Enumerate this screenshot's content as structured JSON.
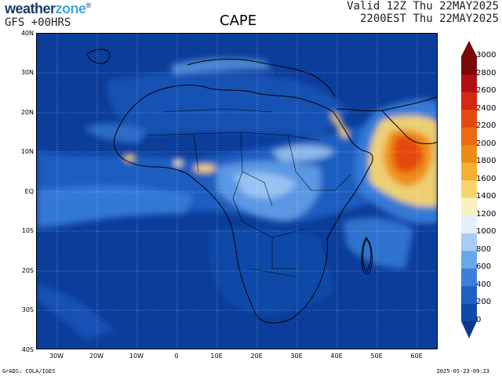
{
  "header": {
    "logo_part1": "weather",
    "logo_part2": "zone",
    "logo_mark": "®",
    "model_line": "GFS  +00HRS",
    "title": "CAPE",
    "valid_line1": "Valid 12Z Thu 22MAY2025",
    "valid_line2": "2200EST Thu 22MAY2025"
  },
  "map": {
    "latitudes": [
      "40N",
      "30N",
      "20N",
      "10N",
      "EQ",
      "10S",
      "20S",
      "30S",
      "40S"
    ],
    "longitudes": [
      "30W",
      "20W",
      "10W",
      "0",
      "10E",
      "20E",
      "30E",
      "40E",
      "50E",
      "60E"
    ]
  },
  "colorbar": {
    "levels": [
      "0",
      "200",
      "400",
      "600",
      "800",
      "1000",
      "1200",
      "1400",
      "1600",
      "1800",
      "2000",
      "2200",
      "2400",
      "2600",
      "2800",
      "3000"
    ],
    "colors": [
      "#0a3a8c",
      "#0f4aa8",
      "#1e5fc4",
      "#3a7fdc",
      "#6aa6ec",
      "#a7cdf5",
      "#e3f0fb",
      "#fbf0c0",
      "#f8d46e",
      "#f5b030",
      "#ef8a12",
      "#ec6a10",
      "#e44a10",
      "#d42810",
      "#b01010",
      "#7a0808"
    ]
  },
  "footer": {
    "left": "GrADS: COLA/IGES",
    "right": "2025-05-23-09:23"
  }
}
